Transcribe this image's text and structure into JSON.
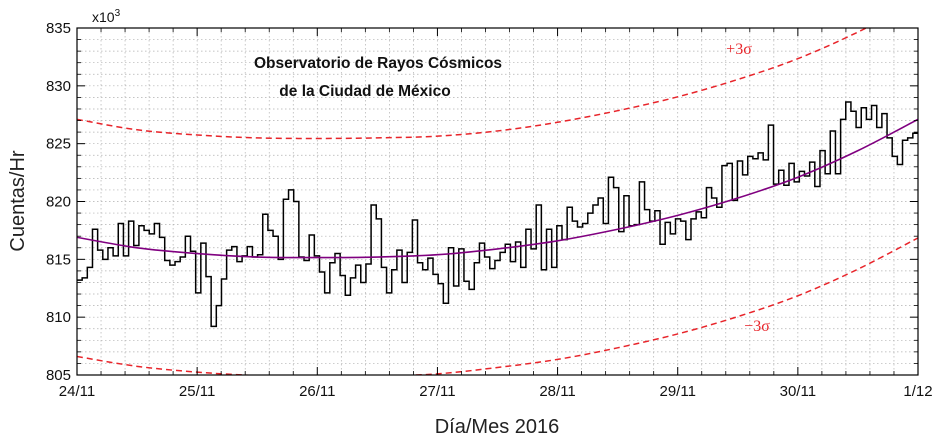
{
  "chart_data": {
    "type": "line",
    "title_line1": "Observatorio de Rayos Cósmicos",
    "title_line2": "de la Ciudad de México",
    "xlabel": "Día/Mes 2016",
    "ylabel": "Cuentas/Hr",
    "y_multiplier_base": "x10",
    "y_multiplier_exp": "3",
    "x_ticks": [
      "24/11",
      "25/11",
      "26/11",
      "27/11",
      "28/11",
      "29/11",
      "30/11",
      "1/12"
    ],
    "xlim": [
      0,
      7
    ],
    "ylim": [
      805,
      835
    ],
    "y_ticks": [
      805,
      810,
      815,
      820,
      825,
      830,
      835
    ],
    "grid": true,
    "series": [
      {
        "kind": "step",
        "color": "#000000",
        "x_start": 0,
        "x_step": 0.0417,
        "values": [
          813.2,
          813.4,
          814.3,
          817.6,
          815.8,
          815.0,
          816.0,
          815.3,
          818.1,
          815.3,
          818.3,
          816.2,
          817.9,
          817.5,
          817.2,
          818.1,
          816.9,
          814.9,
          814.5,
          814.8,
          815.2,
          817.0,
          815.7,
          812.1,
          816.4,
          813.5,
          809.2,
          811.0,
          813.3,
          815.8,
          816.1,
          814.8,
          815.3,
          816.1,
          815.2,
          815.4,
          818.9,
          817.5,
          817.0,
          815.0,
          820.2,
          821.0,
          820.0,
          815.2,
          814.9,
          817.1,
          815.3,
          813.9,
          812.1,
          814.7,
          815.5,
          813.6,
          811.9,
          813.4,
          814.5,
          813.0,
          814.6,
          819.7,
          818.5,
          814.3,
          812.1,
          814.1,
          815.8,
          813.0,
          815.6,
          818.4,
          814.7,
          814.1,
          815.1,
          813.7,
          812.9,
          811.2,
          816.0,
          812.7,
          815.9,
          813.1,
          812.4,
          814.7,
          816.4,
          815.2,
          814.2,
          814.9,
          815.6,
          816.3,
          814.8,
          816.5,
          814.3,
          817.6,
          815.9,
          819.7,
          814.1,
          817.6,
          814.3,
          817.9,
          816.7,
          819.5,
          818.3,
          817.8,
          818.1,
          819.0,
          819.7,
          820.3,
          818.1,
          822.1,
          821.2,
          817.4,
          820.5,
          817.9,
          818.0,
          821.7,
          819.3,
          818.3,
          819.2,
          816.3,
          818.2,
          817.2,
          818.5,
          818.3,
          816.7,
          818.5,
          819.1,
          818.6,
          821.2,
          820.3,
          819.5,
          823.1,
          823.3,
          820.1,
          823.5,
          822.3,
          823.9,
          823.7,
          824.2,
          823.6,
          826.6,
          821.5,
          822.7,
          821.4,
          823.3,
          821.7,
          822.6,
          822.2,
          823.4,
          821.3,
          824.4,
          822.4,
          826.1,
          822.4,
          827.1,
          828.6,
          827.8,
          826.4,
          828.1,
          827.1,
          828.3,
          826.4,
          827.6,
          825.5,
          823.9,
          823.2,
          825.3,
          825.5,
          825.9
        ]
      },
      {
        "kind": "fit",
        "color": "#800080",
        "x": [
          0,
          0.5,
          1,
          1.5,
          2,
          2.5,
          3,
          3.5,
          4,
          4.5,
          5,
          5.5,
          6,
          6.5,
          7
        ],
        "values": [
          816.9,
          816.0,
          815.5,
          815.2,
          815.15,
          815.2,
          815.4,
          815.9,
          816.6,
          817.6,
          818.8,
          820.3,
          822.1,
          824.4,
          827.1
        ]
      },
      {
        "kind": "upper_3sigma",
        "color": "#e8242a",
        "x": [
          0,
          0.5,
          1,
          1.5,
          2,
          2.5,
          3,
          3.5,
          4,
          4.5,
          5,
          5.5,
          6,
          6.5,
          7
        ],
        "values": [
          827.1,
          826.2,
          825.75,
          825.5,
          825.45,
          825.5,
          825.65,
          826.1,
          826.85,
          827.85,
          829.05,
          830.55,
          832.35,
          834.65,
          837.35
        ]
      },
      {
        "kind": "lower_3sigma",
        "color": "#e8242a",
        "x": [
          0,
          0.5,
          1,
          1.5,
          2,
          2.5,
          3,
          3.5,
          4,
          4.5,
          5,
          5.5,
          6,
          6.5,
          7
        ],
        "values": [
          806.6,
          805.75,
          805.25,
          804.95,
          804.85,
          804.9,
          805.1,
          805.65,
          806.35,
          807.35,
          808.55,
          810.05,
          811.85,
          814.15,
          816.85
        ]
      }
    ],
    "annotations": [
      "+3σ",
      "−3σ"
    ]
  },
  "colors": {
    "counts": "#000000",
    "fit": "#800080",
    "sigma": "#e8242a",
    "grid": "#b0b0b0"
  }
}
